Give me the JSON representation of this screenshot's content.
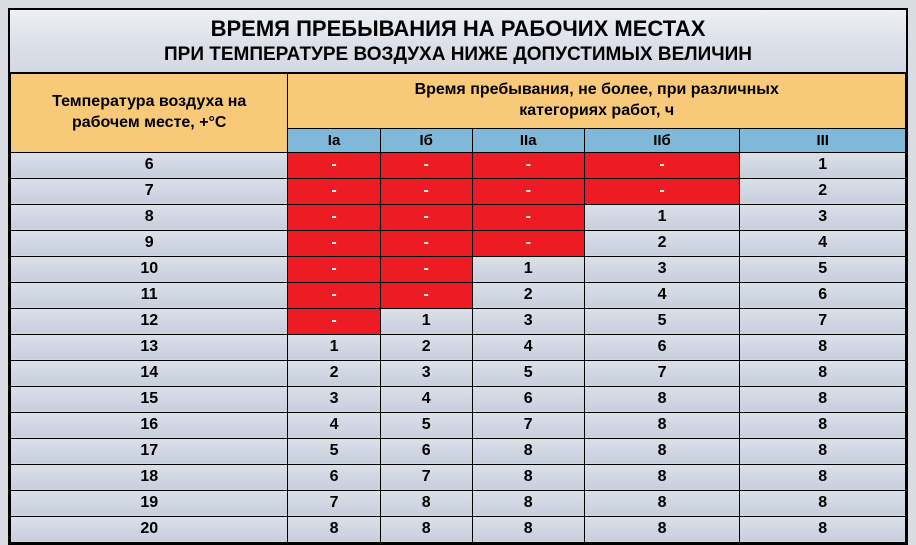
{
  "title": "ВРЕМЯ ПРЕБЫВАНИЯ НА РАБОЧИХ МЕСТАХ",
  "subtitle": "ПРИ ТЕМПЕРАТУРЕ ВОЗДУХА НИЖЕ ДОПУСТИМЫХ ВЕЛИЧИН",
  "header_left_line1": "Температура воздуха на",
  "header_left_line2": "рабочем месте, +°С",
  "header_right_line1": "Время пребывания, не более, при различных",
  "header_right_line2": "категориях работ, ч",
  "categories": [
    "Iа",
    "Iб",
    "IIа",
    "IIб",
    "III"
  ],
  "rows": [
    {
      "temp": "6",
      "values": [
        "-",
        "-",
        "-",
        "-",
        "1"
      ],
      "red": [
        true,
        true,
        true,
        true,
        false
      ]
    },
    {
      "temp": "7",
      "values": [
        "-",
        "-",
        "-",
        "-",
        "2"
      ],
      "red": [
        true,
        true,
        true,
        true,
        false
      ]
    },
    {
      "temp": "8",
      "values": [
        "-",
        "-",
        "-",
        "1",
        "3"
      ],
      "red": [
        true,
        true,
        true,
        false,
        false
      ]
    },
    {
      "temp": "9",
      "values": [
        "-",
        "-",
        "-",
        "2",
        "4"
      ],
      "red": [
        true,
        true,
        true,
        false,
        false
      ]
    },
    {
      "temp": "10",
      "values": [
        "-",
        "-",
        "1",
        "3",
        "5"
      ],
      "red": [
        true,
        true,
        false,
        false,
        false
      ]
    },
    {
      "temp": "11",
      "values": [
        "-",
        "-",
        "2",
        "4",
        "6"
      ],
      "red": [
        true,
        true,
        false,
        false,
        false
      ]
    },
    {
      "temp": "12",
      "values": [
        "-",
        "1",
        "3",
        "5",
        "7"
      ],
      "red": [
        true,
        false,
        false,
        false,
        false
      ]
    },
    {
      "temp": "13",
      "values": [
        "1",
        "2",
        "4",
        "6",
        "8"
      ],
      "red": [
        false,
        false,
        false,
        false,
        false
      ]
    },
    {
      "temp": "14",
      "values": [
        "2",
        "3",
        "5",
        "7",
        "8"
      ],
      "red": [
        false,
        false,
        false,
        false,
        false
      ]
    },
    {
      "temp": "15",
      "values": [
        "3",
        "4",
        "6",
        "8",
        "8"
      ],
      "red": [
        false,
        false,
        false,
        false,
        false
      ]
    },
    {
      "temp": "16",
      "values": [
        "4",
        "5",
        "7",
        "8",
        "8"
      ],
      "red": [
        false,
        false,
        false,
        false,
        false
      ]
    },
    {
      "temp": "17",
      "values": [
        "5",
        "6",
        "8",
        "8",
        "8"
      ],
      "red": [
        false,
        false,
        false,
        false,
        false
      ]
    },
    {
      "temp": "18",
      "values": [
        "6",
        "7",
        "8",
        "8",
        "8"
      ],
      "red": [
        false,
        false,
        false,
        false,
        false
      ]
    },
    {
      "temp": "19",
      "values": [
        "7",
        "8",
        "8",
        "8",
        "8"
      ],
      "red": [
        false,
        false,
        false,
        false,
        false
      ]
    },
    {
      "temp": "20",
      "values": [
        "8",
        "8",
        "8",
        "8",
        "8"
      ],
      "red": [
        false,
        false,
        false,
        false,
        false
      ]
    }
  ],
  "colors": {
    "red": "#ed1c24",
    "header_orange": "#f7c978",
    "header_blue": "#7fb8d8",
    "row_grad_top": "#dbe0e9",
    "row_grad_bottom": "#c7cfdc"
  }
}
